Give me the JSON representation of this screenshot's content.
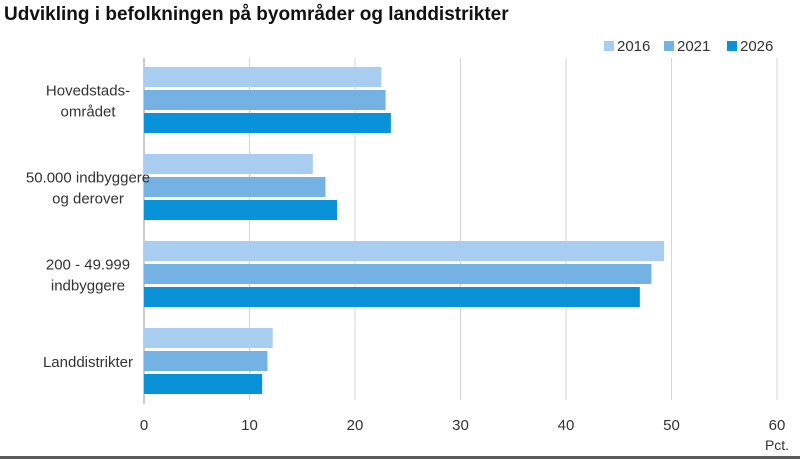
{
  "title": "Udvikling i befolkningen på byområder og landdistrikter",
  "chart_data": {
    "type": "bar",
    "orientation": "horizontal",
    "title": "Udvikling i befolkningen på byområder og landdistrikter",
    "categories": [
      [
        "Hovedstads-",
        "området"
      ],
      [
        "50.000 indbyggere",
        "og derover"
      ],
      [
        "200 - 49.999",
        "indbyggere"
      ],
      [
        "Landdistrikter"
      ]
    ],
    "series": [
      {
        "name": "2016",
        "color": "#a9cdf0",
        "values": [
          22.5,
          16.0,
          49.3,
          12.2
        ]
      },
      {
        "name": "2021",
        "color": "#74b2e4",
        "values": [
          22.9,
          17.2,
          48.1,
          11.7
        ]
      },
      {
        "name": "2026",
        "color": "#0992d8",
        "values": [
          23.4,
          18.3,
          47.0,
          11.2
        ]
      }
    ],
    "xlim": [
      0,
      60
    ],
    "xticks": [
      "0",
      "10",
      "20",
      "30",
      "40",
      "50",
      "60"
    ],
    "xunit": "Pct.",
    "grid": "vertical",
    "legend_position": "top-right"
  }
}
